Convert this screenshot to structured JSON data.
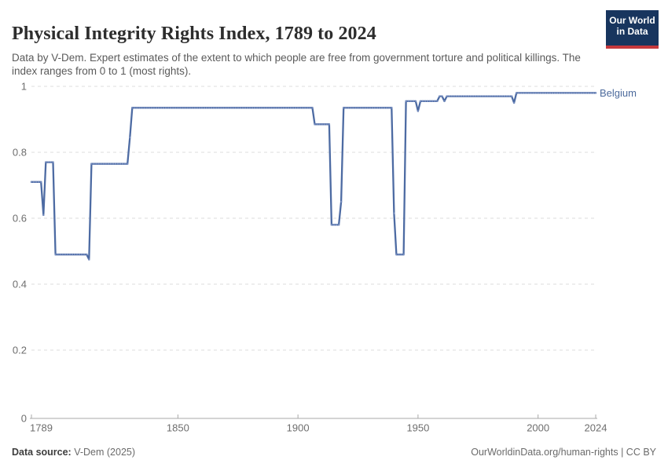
{
  "header": {
    "title": "Physical Integrity Rights Index, 1789 to 2024",
    "subtitle": "Data by V-Dem. Expert estimates of the extent to which people are free from government torture and political killings. The index ranges from 0 to 1 (most rights)."
  },
  "logo": {
    "line1": "Our World",
    "line2": "in Data",
    "bg_color": "#18355e",
    "bar_color": "#c5383c"
  },
  "footer": {
    "source_label": "Data source:",
    "source_value": " V-Dem (2025)",
    "attribution": "OurWorldinData.org/human-rights | CC BY"
  },
  "chart_data": {
    "type": "line",
    "title": "Physical Integrity Rights Index, 1789 to 2024",
    "entity": "Belgium",
    "xlabel": "",
    "ylabel": "",
    "xlim": [
      1789,
      2024
    ],
    "ylim": [
      0,
      1
    ],
    "grid": true,
    "legend_position": "end-of-line",
    "x_ticks": [
      1789,
      1850,
      1900,
      1950,
      2000,
      2024
    ],
    "y_ticks": [
      {
        "v": 0,
        "label": "0"
      },
      {
        "v": 0.2,
        "label": "0.2"
      },
      {
        "v": 0.4,
        "label": "0.4"
      },
      {
        "v": 0.6,
        "label": "0.6"
      },
      {
        "v": 0.8,
        "label": "0.8"
      },
      {
        "v": 1,
        "label": "1"
      }
    ],
    "line_color": "#4d6ba3",
    "marker_color": "#7189bc",
    "grid_color": "#dedede",
    "axis_color": "#a8a8a8",
    "tick_label_color": "#6e6e6e",
    "steps_note": "each step = [startYear, endYear, indexValue]; one data point per year",
    "steps": [
      [
        1789,
        1793,
        0.71
      ],
      [
        1794,
        1794,
        0.61
      ],
      [
        1795,
        1798,
        0.77
      ],
      [
        1799,
        1812,
        0.49
      ],
      [
        1813,
        1813,
        0.475
      ],
      [
        1814,
        1829,
        0.765
      ],
      [
        1830,
        1830,
        0.845
      ],
      [
        1831,
        1906,
        0.935
      ],
      [
        1907,
        1913,
        0.885
      ],
      [
        1914,
        1917,
        0.58
      ],
      [
        1918,
        1918,
        0.65
      ],
      [
        1919,
        1939,
        0.935
      ],
      [
        1940,
        1940,
        0.615
      ],
      [
        1941,
        1944,
        0.49
      ],
      [
        1945,
        1949,
        0.955
      ],
      [
        1950,
        1950,
        0.925
      ],
      [
        1951,
        1958,
        0.955
      ],
      [
        1959,
        1960,
        0.97
      ],
      [
        1961,
        1961,
        0.955
      ],
      [
        1962,
        1989,
        0.97
      ],
      [
        1990,
        1990,
        0.95
      ],
      [
        1991,
        2024,
        0.98
      ]
    ]
  }
}
